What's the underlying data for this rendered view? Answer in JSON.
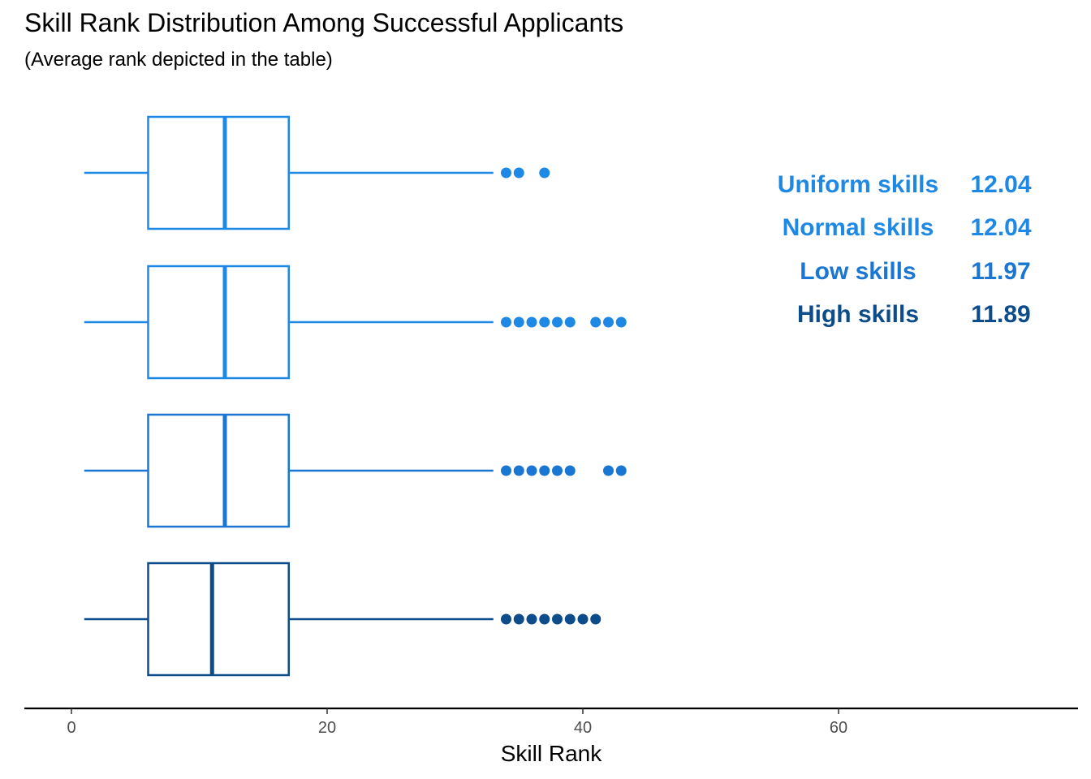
{
  "chart_data": {
    "type": "boxplot",
    "orientation": "horizontal",
    "title": "Skill Rank Distribution Among Successful Applicants",
    "subtitle": "(Average rank depicted in the table)",
    "xlabel": "Skill Rank",
    "ylabel": "",
    "xlim": [
      -2,
      79
    ],
    "xticks": [
      0,
      20,
      40,
      60
    ],
    "grid": false,
    "legend": "none",
    "series": [
      {
        "name": "Uniform skills",
        "color": "#1E88E5",
        "whisker_low": 1,
        "q1": 6,
        "median": 12,
        "q3": 17,
        "whisker_high": 33,
        "outliers": [
          34,
          35,
          37
        ],
        "average": "12.04"
      },
      {
        "name": "Normal skills",
        "color": "#1E88E5",
        "whisker_low": 1,
        "q1": 6,
        "median": 12,
        "q3": 17,
        "whisker_high": 33,
        "outliers": [
          34,
          35,
          36,
          37,
          38,
          39,
          41,
          42,
          43
        ],
        "average": "12.04"
      },
      {
        "name": "Low skills",
        "color": "#1976D2",
        "whisker_low": 1,
        "q1": 6,
        "median": 12,
        "q3": 17,
        "whisker_high": 33,
        "outliers": [
          34,
          35,
          36,
          37,
          38,
          39,
          42,
          43
        ],
        "average": "11.97"
      },
      {
        "name": "High skills",
        "color": "#0D4C8B",
        "whisker_low": 1,
        "q1": 6,
        "median": 11,
        "q3": 17,
        "whisker_high": 33,
        "outliers": [
          34,
          35,
          36,
          37,
          38,
          39,
          40,
          41
        ],
        "average": "11.89"
      }
    ]
  }
}
